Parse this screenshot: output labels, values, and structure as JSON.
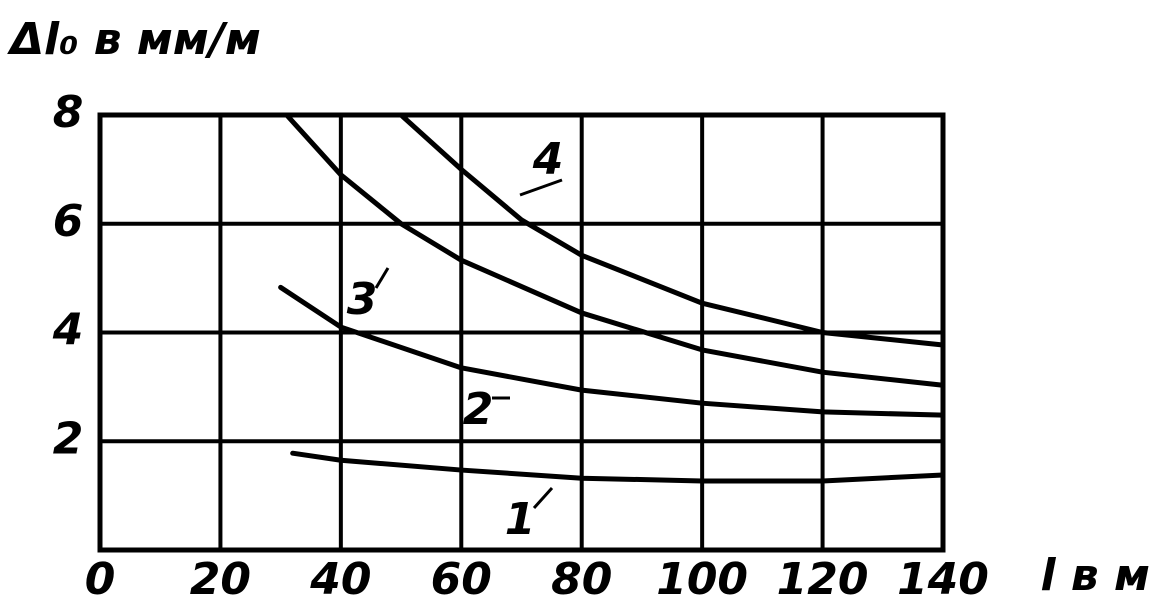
{
  "chart_data": {
    "type": "line",
    "y_label": "Δl₀ в мм/м",
    "x_label": "l в м",
    "xlim": [
      0,
      140
    ],
    "ylim": [
      0,
      8
    ],
    "xticks": [
      0,
      20,
      40,
      60,
      80,
      100,
      120,
      140
    ],
    "yticks": [
      2,
      4,
      6,
      8
    ],
    "grid": true,
    "series": [
      {
        "name": "1",
        "color": "#000000",
        "x": [
          32,
          40,
          60,
          80,
          100,
          120,
          140
        ],
        "values": [
          1.78,
          1.65,
          1.47,
          1.32,
          1.27,
          1.27,
          1.38
        ]
      },
      {
        "name": "2",
        "color": "#000000",
        "x": [
          30,
          40,
          60,
          80,
          100,
          120,
          140
        ],
        "values": [
          4.83,
          4.1,
          3.35,
          2.94,
          2.7,
          2.54,
          2.48
        ]
      },
      {
        "name": "3",
        "color": "#000000",
        "x": [
          31,
          40,
          50,
          60,
          80,
          100,
          120,
          140
        ],
        "values": [
          8,
          6.9,
          6.0,
          5.33,
          4.36,
          3.68,
          3.27,
          3.03
        ]
      },
      {
        "name": "4",
        "color": "#000000",
        "x": [
          50,
          60,
          70,
          80,
          100,
          120,
          140
        ],
        "values": [
          8,
          7.0,
          6.07,
          5.42,
          4.54,
          4.0,
          3.77
        ]
      }
    ]
  }
}
